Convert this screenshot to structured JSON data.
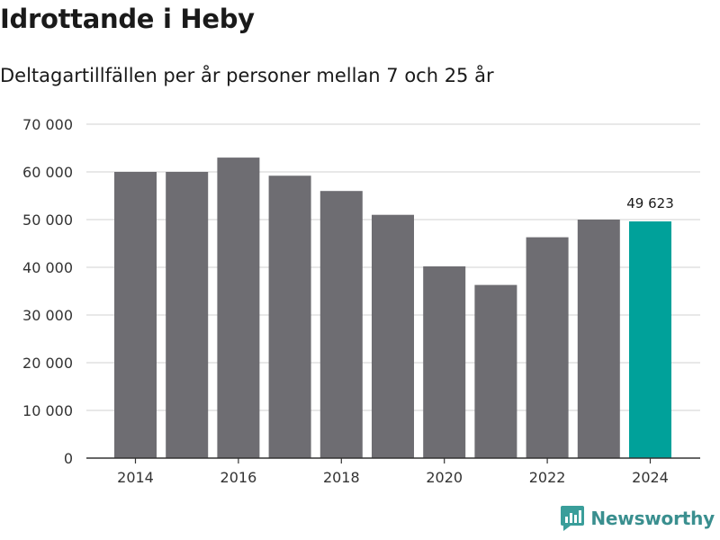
{
  "header": {
    "title": "Idrottande i Heby",
    "subtitle": "Deltagartillfällen per år personer mellan 7 och 25 år"
  },
  "brand": {
    "name": "Newsworthy",
    "color": "#3a9e9a"
  },
  "chart_data": {
    "type": "bar",
    "title": "Idrottande i Heby",
    "subtitle": "Deltagartillfällen per år personer mellan 7 och 25 år",
    "xlabel": "",
    "ylabel": "",
    "categories": [
      "2014",
      "2015",
      "2016",
      "2017",
      "2018",
      "2019",
      "2020",
      "2021",
      "2022",
      "2023",
      "2024"
    ],
    "values": [
      60000,
      60000,
      63000,
      59200,
      56000,
      51000,
      40200,
      36300,
      46300,
      50000,
      49623
    ],
    "x_tick_labels": [
      "2014",
      "2016",
      "2018",
      "2020",
      "2022",
      "2024"
    ],
    "y_ticks": [
      0,
      10000,
      20000,
      30000,
      40000,
      50000,
      60000,
      70000
    ],
    "y_tick_labels": [
      "0",
      "10 000",
      "20 000",
      "30 000",
      "40 000",
      "50 000",
      "60 000",
      "70 000"
    ],
    "ylim": [
      0,
      70000
    ],
    "highlight_index": 10,
    "highlight_label": "49 623",
    "colors": {
      "bar": "#6e6d72",
      "highlight": "#00a19a",
      "grid": "#d9d9d9",
      "axis": "#333333"
    },
    "grid": true
  }
}
